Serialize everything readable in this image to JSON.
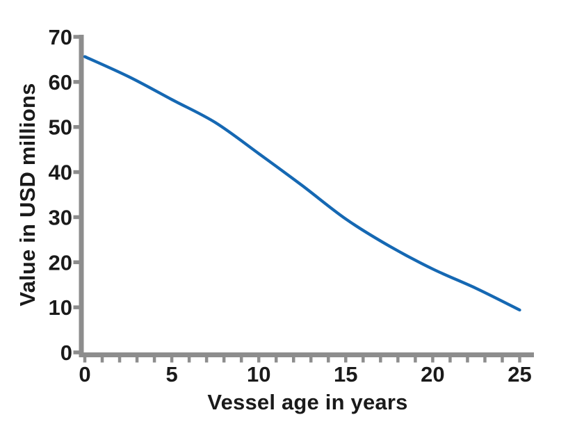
{
  "figure": {
    "background": "#ffffff"
  },
  "chart_data": {
    "type": "line",
    "title": "",
    "xlabel": "Vessel age in years",
    "ylabel": "Value in USD millions",
    "x": [
      0,
      2.5,
      5,
      7.5,
      10,
      12.5,
      15,
      17.5,
      20,
      22.5,
      25
    ],
    "values": [
      65.6,
      61.2,
      56.1,
      51.0,
      44.1,
      37.0,
      29.6,
      23.6,
      18.5,
      14.2,
      9.4
    ],
    "xlim": [
      0,
      25.8
    ],
    "ylim": [
      0,
      70
    ],
    "x_ticks": [
      0,
      5,
      10,
      15,
      20,
      25
    ],
    "y_ticks": [
      0,
      10,
      20,
      30,
      40,
      50,
      60,
      70
    ],
    "x_minor_tick_step": 1,
    "grid": false,
    "legend": "none",
    "line_color": "#1568b3",
    "axis_color": "#8d8d8d",
    "text_color": "#1a1a1a"
  }
}
